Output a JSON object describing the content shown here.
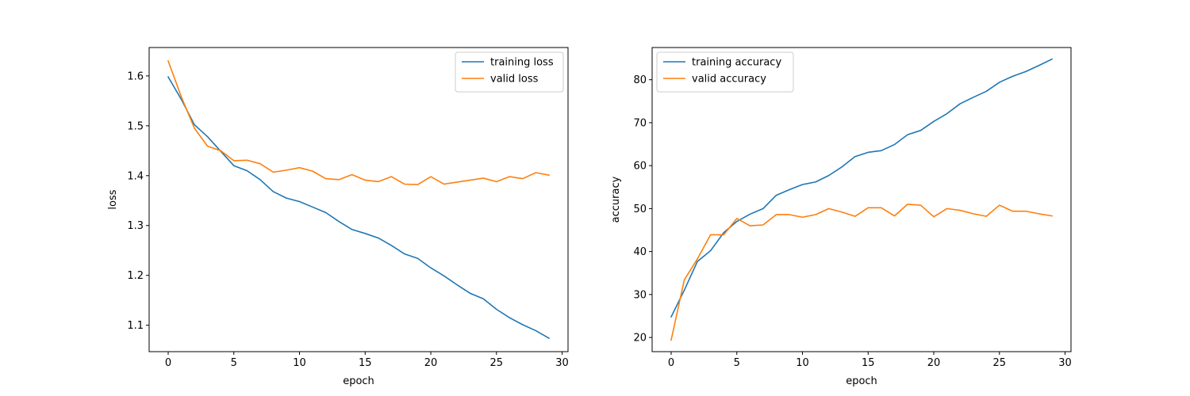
{
  "chart_data": [
    {
      "type": "line",
      "title": "",
      "xlabel": "epoch",
      "ylabel": "loss",
      "xlim": [
        -1.45,
        30.45
      ],
      "ylim": [
        1.047,
        1.657
      ],
      "xticks": [
        0,
        5,
        10,
        15,
        20,
        25,
        30
      ],
      "yticks": [
        1.1,
        1.2,
        1.3,
        1.4,
        1.5,
        1.6
      ],
      "grid": false,
      "legend_position": "top-right",
      "x": [
        0,
        1,
        2,
        3,
        4,
        5,
        6,
        7,
        8,
        9,
        10,
        11,
        12,
        13,
        14,
        15,
        16,
        17,
        18,
        19,
        20,
        21,
        22,
        23,
        24,
        25,
        26,
        27,
        28,
        29
      ],
      "series": [
        {
          "name": "training loss",
          "color": "#1f77b4",
          "values": [
            1.598,
            1.553,
            1.502,
            1.478,
            1.449,
            1.42,
            1.41,
            1.392,
            1.368,
            1.355,
            1.348,
            1.337,
            1.326,
            1.308,
            1.292,
            1.284,
            1.275,
            1.26,
            1.243,
            1.234,
            1.215,
            1.199,
            1.181,
            1.164,
            1.153,
            1.132,
            1.115,
            1.101,
            1.089,
            1.074
          ]
        },
        {
          "name": "valid loss",
          "color": "#ff7f0e",
          "values": [
            1.63,
            1.558,
            1.495,
            1.459,
            1.45,
            1.43,
            1.431,
            1.424,
            1.407,
            1.411,
            1.416,
            1.409,
            1.394,
            1.392,
            1.402,
            1.391,
            1.388,
            1.398,
            1.383,
            1.382,
            1.398,
            1.383,
            1.387,
            1.391,
            1.395,
            1.388,
            1.398,
            1.394,
            1.406,
            1.401
          ]
        }
      ]
    },
    {
      "type": "line",
      "title": "",
      "xlabel": "epoch",
      "ylabel": "accuracy",
      "xlim": [
        -1.45,
        30.45
      ],
      "ylim": [
        16.7,
        87.5
      ],
      "xticks": [
        0,
        5,
        10,
        15,
        20,
        25,
        30
      ],
      "yticks": [
        20,
        30,
        40,
        50,
        60,
        70,
        80
      ],
      "grid": false,
      "legend_position": "top-left",
      "x": [
        0,
        1,
        2,
        3,
        4,
        5,
        6,
        7,
        8,
        9,
        10,
        11,
        12,
        13,
        14,
        15,
        16,
        17,
        18,
        19,
        20,
        21,
        22,
        23,
        24,
        25,
        26,
        27,
        28,
        29
      ],
      "series": [
        {
          "name": "training accuracy",
          "color": "#1f77b4",
          "values": [
            24.8,
            31.0,
            37.7,
            40.2,
            44.4,
            47.0,
            48.7,
            50.0,
            53.1,
            54.4,
            55.6,
            56.2,
            57.7,
            59.7,
            62.1,
            63.1,
            63.5,
            64.9,
            67.2,
            68.2,
            70.3,
            72.1,
            74.4,
            75.9,
            77.3,
            79.4,
            80.8,
            81.9,
            83.3,
            84.8
          ]
        },
        {
          "name": "valid accuracy",
          "color": "#ff7f0e",
          "values": [
            19.4,
            33.4,
            38.3,
            43.9,
            43.9,
            47.7,
            46.0,
            46.2,
            48.6,
            48.6,
            48.0,
            48.6,
            50.0,
            49.2,
            48.2,
            50.2,
            50.2,
            48.3,
            51.0,
            50.8,
            48.1,
            50.0,
            49.6,
            48.8,
            48.2,
            50.8,
            49.4,
            49.4,
            48.8,
            48.3
          ]
        }
      ]
    }
  ]
}
